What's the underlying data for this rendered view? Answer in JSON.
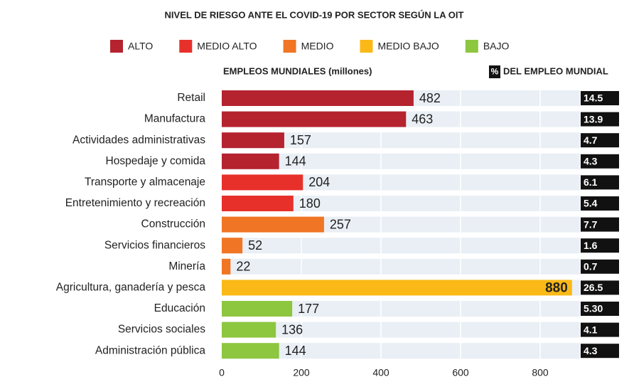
{
  "chart_data": {
    "type": "bar",
    "orientation": "horizontal",
    "title": "NIVEL DE RIESGO ANTE EL COVID-19 POR SECTOR SEGÚN LA OIT",
    "legend": [
      {
        "name": "ALTO",
        "color": "#b5232f"
      },
      {
        "name": "MEDIO ALTO",
        "color": "#e8302a"
      },
      {
        "name": "MEDIO",
        "color": "#f07524"
      },
      {
        "name": "MEDIO BAJO",
        "color": "#fbb917"
      },
      {
        "name": "BAJO",
        "color": "#8dc63f"
      }
    ],
    "x_label": "EMPLEOS MUNDIALES (millones)",
    "share_header_symbol": "%",
    "share_header": "DEL EMPLEO MUNDIAL",
    "categories": [
      "Retail",
      "Manufactura",
      "Actividades administrativas",
      "Hospedaje y comida",
      "Transporte y almacenaje",
      "Entretenimiento y recreación",
      "Construcción",
      "Servicios financieros",
      "Minería",
      "Agricultura, ganadería y pesca",
      "Educación",
      "Servicios sociales",
      "Administración pública"
    ],
    "values": [
      482,
      463,
      157,
      144,
      204,
      180,
      257,
      52,
      22,
      880,
      177,
      136,
      144
    ],
    "colors": [
      "#b5232f",
      "#b5232f",
      "#b5232f",
      "#b5232f",
      "#e8302a",
      "#e8302a",
      "#f07524",
      "#f07524",
      "#f07524",
      "#fbb917",
      "#8dc63f",
      "#8dc63f",
      "#8dc63f"
    ],
    "shares": [
      14.5,
      13.9,
      4.7,
      4.3,
      6.1,
      5.4,
      7.7,
      1.6,
      0.7,
      26.5,
      {
        "value": 5.3,
        "label": "5.30"
      },
      4.1,
      4.3
    ],
    "xlim": [
      0,
      900
    ],
    "xticks": [
      0,
      200,
      400,
      600,
      800
    ],
    "grid": true
  }
}
